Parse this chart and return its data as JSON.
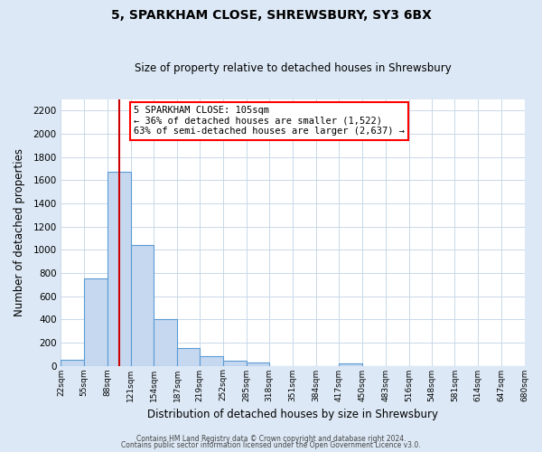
{
  "title": "5, SPARKHAM CLOSE, SHREWSBURY, SY3 6BX",
  "subtitle": "Size of property relative to detached houses in Shrewsbury",
  "xlabel": "Distribution of detached houses by size in Shrewsbury",
  "ylabel": "Number of detached properties",
  "bin_edges": [
    22,
    55,
    88,
    121,
    154,
    187,
    219,
    252,
    285,
    318,
    351,
    384,
    417,
    450,
    483,
    516,
    548,
    581,
    614,
    647,
    680
  ],
  "bar_heights": [
    50,
    750,
    1670,
    1040,
    400,
    150,
    80,
    40,
    25,
    0,
    0,
    0,
    20,
    0,
    0,
    0,
    0,
    0,
    0,
    0
  ],
  "tick_labels": [
    "22sqm",
    "55sqm",
    "88sqm",
    "121sqm",
    "154sqm",
    "187sqm",
    "219sqm",
    "252sqm",
    "285sqm",
    "318sqm",
    "351sqm",
    "384sqm",
    "417sqm",
    "450sqm",
    "483sqm",
    "516sqm",
    "548sqm",
    "581sqm",
    "614sqm",
    "647sqm",
    "680sqm"
  ],
  "bar_color": "#c5d8f0",
  "bar_edge_color": "#5b9bd5",
  "vline_x": 105,
  "vline_color": "#cc0000",
  "annotation_text_line1": "5 SPARKHAM CLOSE: 105sqm",
  "annotation_text_line2": "← 36% of detached houses are smaller (1,522)",
  "annotation_text_line3": "63% of semi-detached houses are larger (2,637) →",
  "ylim": [
    0,
    2300
  ],
  "yticks": [
    0,
    200,
    400,
    600,
    800,
    1000,
    1200,
    1400,
    1600,
    1800,
    2000,
    2200
  ],
  "footer1": "Contains HM Land Registry data © Crown copyright and database right 2024.",
  "footer2": "Contains public sector information licensed under the Open Government Licence v3.0.",
  "fig_bg_color": "#dce8f5",
  "axes_bg_color": "#ffffff",
  "grid_color": "#c8d8e8"
}
